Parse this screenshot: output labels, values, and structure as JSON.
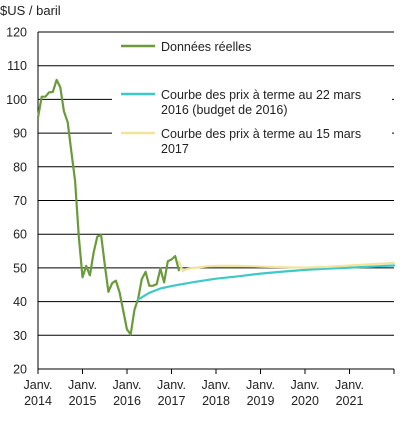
{
  "chart_data": {
    "type": "line",
    "title": "",
    "ylabel": "$US / baril",
    "xlabel": "",
    "ylim": [
      20,
      120
    ],
    "yticks": [
      20,
      30,
      40,
      50,
      60,
      70,
      80,
      90,
      100,
      110,
      120
    ],
    "xlim": [
      2014.0,
      2022.0
    ],
    "xticks": [
      {
        "value": 2014,
        "line1": "Janv.",
        "line2": "2014"
      },
      {
        "value": 2015,
        "line1": "Janv.",
        "line2": "2015"
      },
      {
        "value": 2016,
        "line1": "Janv.",
        "line2": "2016"
      },
      {
        "value": 2017,
        "line1": "Janv.",
        "line2": "2017"
      },
      {
        "value": 2018,
        "line1": "Janv.",
        "line2": "2018"
      },
      {
        "value": 2019,
        "line1": "Janv.",
        "line2": "2019"
      },
      {
        "value": 2020,
        "line1": "Janv.",
        "line2": "2020"
      },
      {
        "value": 2021,
        "line1": "Janv.",
        "line2": "2021"
      }
    ],
    "grid": "horizontal",
    "legend_position": "top-right",
    "series": [
      {
        "name": "Données réelles",
        "color": "#6a9a3a",
        "x": [
          2014.0,
          2014.083,
          2014.167,
          2014.25,
          2014.333,
          2014.417,
          2014.5,
          2014.583,
          2014.667,
          2014.75,
          2014.833,
          2014.917,
          2015.0,
          2015.083,
          2015.167,
          2015.25,
          2015.333,
          2015.417,
          2015.5,
          2015.583,
          2015.667,
          2015.75,
          2015.833,
          2015.917,
          2016.0,
          2016.083,
          2016.167,
          2016.25,
          2016.333,
          2016.417,
          2016.5,
          2016.583,
          2016.667,
          2016.75,
          2016.833,
          2016.917,
          2017.0,
          2017.083,
          2017.167
        ],
        "values": [
          94.6,
          100.8,
          100.8,
          102.1,
          102.2,
          105.8,
          103.6,
          96.5,
          93.2,
          84.4,
          75.8,
          59.3,
          47.2,
          50.6,
          47.8,
          54.5,
          59.3,
          59.8,
          50.9,
          42.9,
          45.5,
          46.2,
          42.7,
          37.2,
          31.7,
          30.3,
          37.5,
          40.8,
          46.7,
          48.8,
          44.7,
          44.7,
          45.2,
          49.8,
          45.7,
          52.0,
          52.5,
          53.5,
          49.3
        ]
      },
      {
        "name": "Courbe des prix à terme au 22 mars 2016 (budget de 2016)",
        "name_lines": [
          "Courbe des prix à terme au 22 mars",
          "2016 (budget de 2016)"
        ],
        "color": "#3ec8c8",
        "x": [
          2016.25,
          2016.5,
          2016.75,
          2017.0,
          2017.5,
          2018.0,
          2018.5,
          2019.0,
          2019.5,
          2020.0,
          2020.5,
          2021.0,
          2021.5,
          2022.0
        ],
        "values": [
          40.6,
          42.6,
          43.9,
          44.6,
          45.8,
          46.8,
          47.5,
          48.3,
          48.9,
          49.4,
          49.8,
          50.1,
          50.4,
          50.7
        ]
      },
      {
        "name": "Courbe des prix à terme au 15 mars 2017",
        "name_lines": [
          "Courbe des prix à terme au 15 mars",
          "2017"
        ],
        "color": "#f3e49c",
        "x": [
          2017.167,
          2017.25,
          2017.333,
          2017.5,
          2017.75,
          2018.0,
          2018.5,
          2019.0,
          2019.5,
          2020.0,
          2020.5,
          2021.0,
          2021.5,
          2022.0
        ],
        "values": [
          52.0,
          49.0,
          49.6,
          50.0,
          50.4,
          50.6,
          50.6,
          50.4,
          50.2,
          50.1,
          50.3,
          50.7,
          51.1,
          51.5
        ]
      }
    ]
  }
}
